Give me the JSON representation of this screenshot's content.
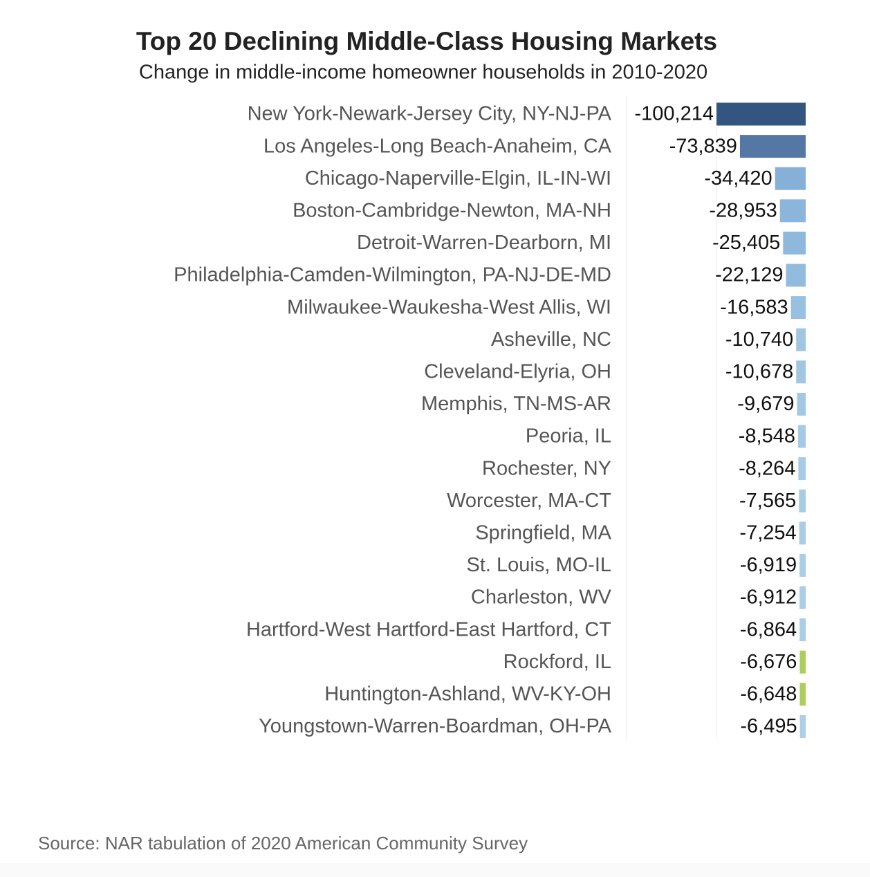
{
  "chart_data": {
    "type": "bar",
    "orientation": "horizontal",
    "title": "Top 20 Declining Middle-Class Housing Markets",
    "subtitle": "Change in middle-income homeowner households in 2010-2020",
    "source": "Source: NAR tabulation of 2020 American Community Survey",
    "categories": [
      "New York-Newark-Jersey City, NY-NJ-PA",
      "Los Angeles-Long Beach-Anaheim, CA",
      "Chicago-Naperville-Elgin, IL-IN-WI",
      "Boston-Cambridge-Newton, MA-NH",
      "Detroit-Warren-Dearborn, MI",
      "Philadelphia-Camden-Wilmington, PA-NJ-DE-MD",
      "Milwaukee-Waukesha-West Allis, WI",
      "Asheville, NC",
      "Cleveland-Elyria, OH",
      "Memphis, TN-MS-AR",
      "Peoria, IL",
      "Rochester, NY",
      "Worcester, MA-CT",
      "Springfield, MA",
      "St. Louis, MO-IL",
      "Charleston, WV",
      "Hartford-West Hartford-East Hartford, CT",
      "Rockford, IL",
      "Huntington-Ashland, WV-KY-OH",
      "Youngstown-Warren-Boardman, OH-PA"
    ],
    "values": [
      -100214,
      -73839,
      -34420,
      -28953,
      -25405,
      -22129,
      -16583,
      -10740,
      -10678,
      -9679,
      -8548,
      -8264,
      -7565,
      -7254,
      -6919,
      -6912,
      -6864,
      -6676,
      -6648,
      -6495
    ],
    "value_labels": [
      "-100,214",
      "-73,839",
      "-34,420",
      "-28,953",
      "-25,405",
      "-22,129",
      "-16,583",
      "-10,740",
      "-10,678",
      "-9,679",
      "-8,548",
      "-8,264",
      "-7,565",
      "-7,254",
      "-6,919",
      "-6,912",
      "-6,864",
      "-6,676",
      "-6,648",
      "-6,495"
    ],
    "colors": [
      "#34557f",
      "#5577a6",
      "#86b0d8",
      "#8bb5db",
      "#8eb8dc",
      "#92bbdd",
      "#98c0e0",
      "#a0c6e2",
      "#a0c6e2",
      "#a3c8e3",
      "#a6cae4",
      "#a7cbe4",
      "#a9cce5",
      "#aacde5",
      "#abcde5",
      "#abcde5",
      "#abcde5",
      "#acce5e",
      "#acce5e",
      "#adcee6"
    ],
    "xlim": [
      -100214,
      0
    ]
  }
}
